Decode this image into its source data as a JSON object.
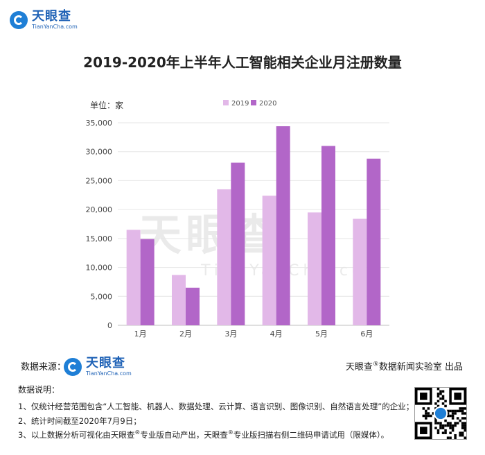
{
  "header": {
    "logo_cn": "天眼查",
    "logo_en": "TianYanCha.com"
  },
  "title": "2019-2020年上半年人工智能相关企业月注册数量",
  "unit_label": "单位：家",
  "watermark": {
    "cn": "天眼查",
    "en": "TianYanCha.com"
  },
  "colors": {
    "series_2019": "#e2b8e8",
    "series_2020": "#b266c8",
    "grid": "#e6e6e6"
  },
  "chart_data": {
    "type": "bar",
    "title": "2019-2020年上半年人工智能相关企业月注册数量",
    "xlabel": "",
    "ylabel": "单位：家",
    "categories": [
      "1月",
      "2月",
      "3月",
      "4月",
      "5月",
      "6月"
    ],
    "series": [
      {
        "name": "2019",
        "values": [
          16500,
          8700,
          23500,
          22400,
          19500,
          18400
        ]
      },
      {
        "name": "2020",
        "values": [
          14900,
          6500,
          28100,
          34400,
          31000,
          28800
        ]
      }
    ],
    "ylim": [
      0,
      35000
    ],
    "yticks": [
      0,
      5000,
      10000,
      15000,
      20000,
      25000,
      30000,
      35000
    ],
    "ytick_labels": [
      "0",
      "5,000",
      "10,000",
      "15,000",
      "20,000",
      "25,000",
      "30,000",
      "35,000"
    ],
    "grid": true,
    "legend_position": "top-center"
  },
  "footer": {
    "source_label": "数据来源：",
    "credit_brand": "天眼查",
    "credit_mark": "®",
    "credit_rest": "数据新闻实验室 出品",
    "notes_title": "数据说明：",
    "notes": [
      {
        "pre": "1、仅统计经营范围包含“人工智能、机器人、数据处理、云计算、语言识别、图像识别、自然语言处理”的企业；"
      },
      {
        "pre": "2、统计时间截至2020年7月9日；"
      },
      {
        "pre": "3、以上数据分析可视化由天眼查",
        "mark": "®",
        "mid": "专业版自动产出，天眼查",
        "mark2": "®",
        "post": "专业版扫描右侧二维码申请试用（限媒体）。"
      }
    ]
  }
}
